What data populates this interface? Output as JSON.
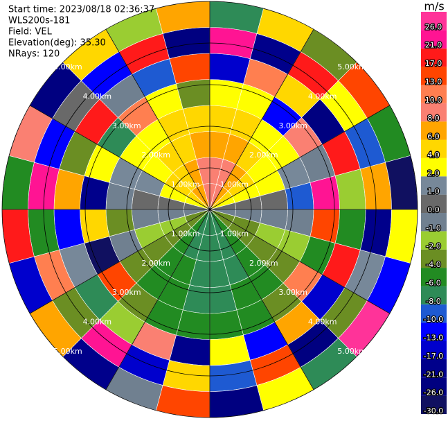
{
  "chart_data": {
    "type": "ppi",
    "header": [
      "Start time: 2023/08/18 02:36:37",
      "WLS200s-181",
      "Field: VEL",
      "Elevation(deg): 35.30",
      "NRays: 120"
    ],
    "unit": "m/s",
    "azimuths": [
      0,
      15,
      30,
      45,
      60,
      75,
      90,
      105,
      120,
      135,
      150,
      165,
      180,
      195,
      210,
      225,
      240,
      255,
      270,
      285,
      300,
      315,
      330,
      345,
      360
    ],
    "ranges": [
      0,
      0.625,
      1.25,
      1.875,
      2.5,
      3.125,
      3.75,
      4.375,
      5
    ],
    "values": [
      [
        9,
        9,
        7,
        5,
        3,
        -17,
        24,
        -8
      ],
      [
        8,
        8,
        6,
        4,
        2,
        12,
        -21,
        5
      ],
      [
        7,
        6,
        5,
        3,
        -13,
        4,
        19,
        -3
      ],
      [
        5,
        4,
        3,
        2,
        8,
        -26,
        2,
        15
      ],
      [
        3,
        3,
        2,
        1,
        -1,
        18,
        -10,
        -5
      ],
      [
        0.5,
        0.5,
        0.5,
        -9,
        22,
        -2,
        7,
        -28
      ],
      [
        -0.5,
        -0.5,
        -1,
        -1,
        14,
        -6,
        -19,
        3
      ],
      [
        -3,
        -3,
        -2,
        -2,
        -5,
        20,
        1,
        -12
      ],
      [
        -4,
        -4,
        -4,
        -3,
        11,
        -15,
        -3,
        27
      ],
      [
        -6,
        -6,
        -5,
        -5,
        -3,
        6,
        -22,
        -7
      ],
      [
        -7,
        -7,
        -7,
        -6,
        -5,
        -11,
        16,
        2
      ],
      [
        -7,
        -7,
        -7,
        -7,
        -6,
        3,
        -9,
        -24
      ],
      [
        -7,
        -7,
        -7,
        -7,
        -6,
        -20,
        5,
        13
      ],
      [
        -7,
        -7,
        -6,
        -6,
        -5,
        9,
        -14,
        -1
      ],
      [
        -6,
        -6,
        -5,
        -5,
        -4,
        -2,
        23,
        -18
      ],
      [
        -4,
        -4,
        -3,
        -3,
        15,
        -8,
        -4,
        6
      ],
      [
        -3,
        -2,
        -2,
        -1,
        -27,
        1,
        10,
        -16
      ],
      [
        -0.5,
        -0.5,
        -0.5,
        -3,
        4,
        -12,
        -5,
        20
      ],
      [
        0.5,
        0.5,
        0.5,
        -1,
        -18,
        7,
        25,
        -6
      ],
      [
        2,
        2,
        1,
        1,
        3,
        -4,
        -13,
        9
      ],
      [
        4,
        4,
        3,
        2,
        -7,
        17,
        0.5,
        -23
      ],
      [
        6,
        5,
        4,
        3,
        12,
        -1,
        -11,
        4
      ],
      [
        7,
        7,
        5,
        4,
        2,
        -9,
        18,
        -2
      ],
      [
        9,
        8,
        7,
        5,
        -3,
        14,
        -25,
        6
      ]
    ],
    "rlim": [
      0,
      5
    ],
    "rticks": [
      {
        "value": 1,
        "label": "1.00km"
      },
      {
        "value": 2,
        "label": "2.00km"
      },
      {
        "value": 3,
        "label": "3.00km"
      },
      {
        "value": 4,
        "label": "4.00km"
      },
      {
        "value": 5,
        "label": "5.00km"
      }
    ],
    "spokes": [
      0,
      30,
      60,
      90,
      120,
      150
    ],
    "colorbar": {
      "lim": [
        -30,
        30
      ],
      "ticks": [
        {
          "value": -30,
          "label": "-30.0"
        },
        {
          "value": -26,
          "label": "-26.0"
        },
        {
          "value": -21,
          "label": "-21.0"
        },
        {
          "value": -17,
          "label": "-17.0"
        },
        {
          "value": -13,
          "label": "-13.0"
        },
        {
          "value": -10,
          "label": "-10.0"
        },
        {
          "value": -8,
          "label": "-8.0"
        },
        {
          "value": -6,
          "label": "-6.0"
        },
        {
          "value": -4,
          "label": "-4.0"
        },
        {
          "value": -2,
          "label": "-2.0"
        },
        {
          "value": -1,
          "label": "-1.0"
        },
        {
          "value": 0,
          "label": "0.0"
        },
        {
          "value": 1,
          "label": "1.0"
        },
        {
          "value": 2,
          "label": "2.0"
        },
        {
          "value": 4,
          "label": "4.0"
        },
        {
          "value": 6,
          "label": "6.0"
        },
        {
          "value": 8,
          "label": "8.0"
        },
        {
          "value": 10,
          "label": "10.0"
        },
        {
          "value": 13,
          "label": "13.0"
        },
        {
          "value": 17,
          "label": "17.0"
        },
        {
          "value": 21,
          "label": "21.0"
        },
        {
          "value": 26,
          "label": "26.0"
        }
      ],
      "colors": [
        "#101060",
        "#000080",
        "#00008b",
        "#0000cd",
        "#0000ff",
        "#1e5ad2",
        "#2e8b57",
        "#228b22",
        "#6b8e23",
        "#9acd32",
        "#708090",
        "#696969",
        "#778899",
        "#ffff00",
        "#ffd700",
        "#ffa500",
        "#fa8072",
        "#ff7f50",
        "#ff4500",
        "#ff1a1a",
        "#ff1493",
        "#ff3399"
      ]
    }
  }
}
